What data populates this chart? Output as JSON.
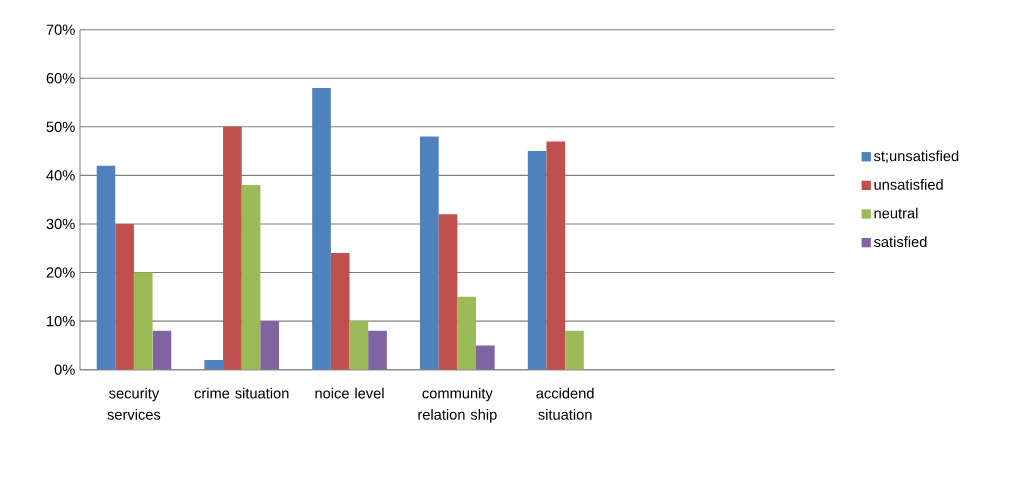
{
  "chart_data": {
    "type": "bar",
    "categories": [
      "security services",
      "crime situation",
      "noice level",
      "community relation ship",
      "accidend situation",
      null,
      null
    ],
    "series": [
      {
        "name": "st;unsatisfied",
        "color": "#4f81bd",
        "values": [
          42,
          2,
          58,
          48,
          45,
          null,
          null
        ]
      },
      {
        "name": "unsatisfied",
        "color": "#c0504d",
        "values": [
          30,
          50,
          24,
          32,
          47,
          null,
          null
        ]
      },
      {
        "name": "neutral",
        "color": "#9bbb59",
        "values": [
          20,
          38,
          10,
          15,
          8,
          null,
          null
        ]
      },
      {
        "name": "satisfied",
        "color": "#8064a2",
        "values": [
          8,
          10,
          8,
          5,
          null,
          null,
          null
        ]
      }
    ],
    "ylim": [
      0,
      70
    ],
    "yticks": [
      {
        "value": 0,
        "label": "0%"
      },
      {
        "value": 10,
        "label": "10%"
      },
      {
        "value": 20,
        "label": "20%"
      },
      {
        "value": 30,
        "label": "30%"
      },
      {
        "value": 40,
        "label": "40%"
      },
      {
        "value": 50,
        "label": "50%"
      },
      {
        "value": 60,
        "label": "60%"
      },
      {
        "value": 70,
        "label": "70%"
      }
    ],
    "grid": "y",
    "legend": "right"
  }
}
